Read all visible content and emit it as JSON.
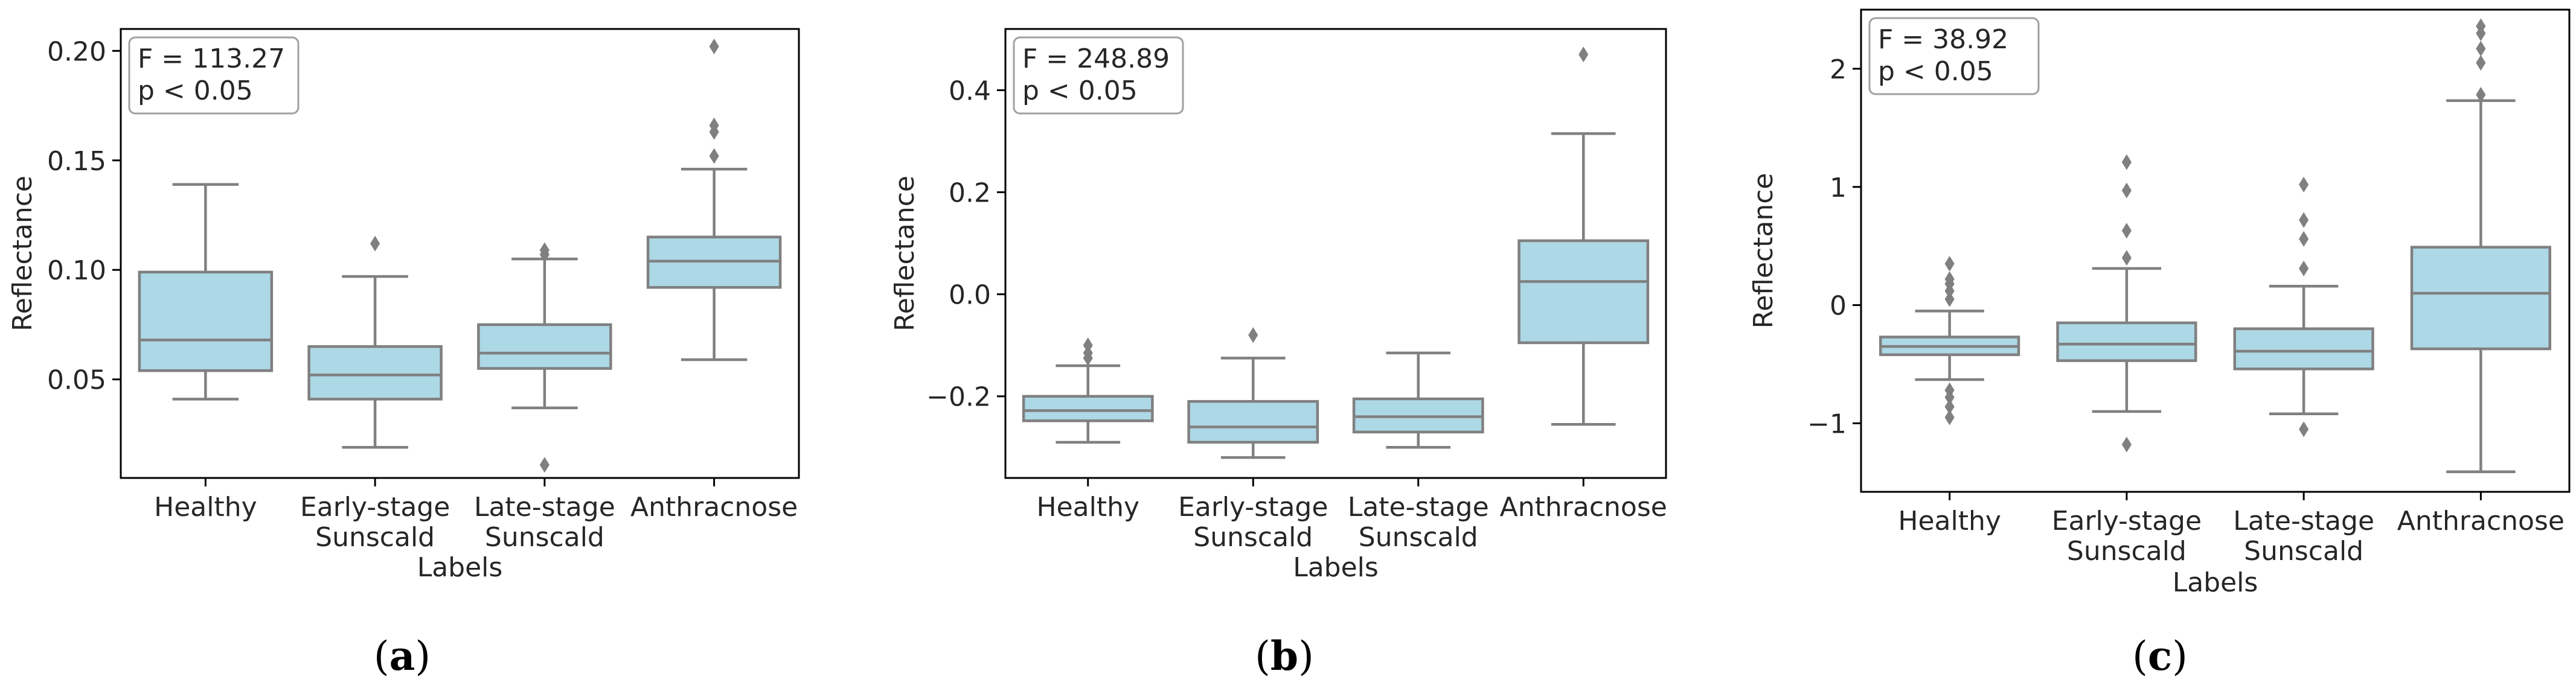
{
  "chart_data": [
    {
      "type": "box",
      "panel_label": "(a)",
      "panel_letter": "a",
      "xlabel": "Labels",
      "ylabel": "Reflectance",
      "ylim": [
        0.005,
        0.21
      ],
      "yticks": [
        0.05,
        0.1,
        0.15,
        0.2
      ],
      "ytick_labels": [
        "0.05",
        "0.10",
        "0.15",
        "0.20"
      ],
      "categories": [
        [
          "Healthy"
        ],
        [
          "Early-stage",
          "Sunscald"
        ],
        [
          "Late-stage",
          "Sunscald"
        ],
        [
          "Anthracnose"
        ]
      ],
      "annotation": {
        "line1": "F = 113.27",
        "line2": "p < 0.05"
      },
      "boxes": [
        {
          "min": 0.041,
          "q1": 0.054,
          "median": 0.068,
          "q3": 0.099,
          "max": 0.139,
          "outliers": []
        },
        {
          "min": 0.019,
          "q1": 0.041,
          "median": 0.052,
          "q3": 0.065,
          "max": 0.097,
          "outliers": [
            0.112
          ]
        },
        {
          "min": 0.037,
          "q1": 0.055,
          "median": 0.062,
          "q3": 0.075,
          "max": 0.105,
          "outliers": [
            0.109,
            0.107,
            0.011
          ]
        },
        {
          "min": 0.059,
          "q1": 0.092,
          "median": 0.104,
          "q3": 0.115,
          "max": 0.146,
          "outliers": [
            0.152,
            0.163,
            0.166,
            0.202
          ]
        }
      ]
    },
    {
      "type": "box",
      "panel_label": "(b)",
      "panel_letter": "b",
      "xlabel": "Labels",
      "ylabel": "Reflectance",
      "ylim": [
        -0.36,
        0.52
      ],
      "yticks": [
        -0.2,
        0.0,
        0.2,
        0.4
      ],
      "ytick_labels": [
        "−0.2",
        "0.0",
        "0.2",
        "0.4"
      ],
      "categories": [
        [
          "Healthy"
        ],
        [
          "Early-stage",
          "Sunscald"
        ],
        [
          "Late-stage",
          "Sunscald"
        ],
        [
          "Anthracnose"
        ]
      ],
      "annotation": {
        "line1": "F = 248.89",
        "line2": "p < 0.05"
      },
      "boxes": [
        {
          "min": -0.29,
          "q1": -0.248,
          "median": -0.228,
          "q3": -0.2,
          "max": -0.14,
          "outliers": [
            -0.125,
            -0.115,
            -0.1
          ]
        },
        {
          "min": -0.32,
          "q1": -0.29,
          "median": -0.26,
          "q3": -0.21,
          "max": -0.125,
          "outliers": [
            -0.08
          ]
        },
        {
          "min": -0.3,
          "q1": -0.27,
          "median": -0.24,
          "q3": -0.205,
          "max": -0.115,
          "outliers": []
        },
        {
          "min": -0.255,
          "q1": -0.095,
          "median": 0.025,
          "q3": 0.105,
          "max": 0.315,
          "outliers": [
            0.47
          ]
        }
      ]
    },
    {
      "type": "box",
      "panel_label": "(c)",
      "panel_letter": "c",
      "xlabel": "Labels",
      "ylabel": "Reflectance",
      "ylim": [
        -1.58,
        2.5
      ],
      "yticks": [
        -1,
        0,
        1,
        2
      ],
      "ytick_labels": [
        "−1",
        "0",
        "1",
        "2"
      ],
      "categories": [
        [
          "Healthy"
        ],
        [
          "Early-stage",
          "Sunscald"
        ],
        [
          "Late-stage",
          "Sunscald"
        ],
        [
          "Anthracnose"
        ]
      ],
      "annotation": {
        "line1": "F = 38.92",
        "line2": "p < 0.05"
      },
      "boxes": [
        {
          "min": -0.63,
          "q1": -0.42,
          "median": -0.35,
          "q3": -0.27,
          "max": -0.05,
          "outliers": [
            0.05,
            0.12,
            0.18,
            0.22,
            0.35,
            -0.72,
            -0.78,
            -0.86,
            -0.95
          ]
        },
        {
          "min": -0.9,
          "q1": -0.47,
          "median": -0.33,
          "q3": -0.15,
          "max": 0.31,
          "outliers": [
            0.4,
            0.63,
            0.97,
            1.21,
            -1.18
          ]
        },
        {
          "min": -0.92,
          "q1": -0.54,
          "median": -0.39,
          "q3": -0.2,
          "max": 0.16,
          "outliers": [
            0.31,
            0.56,
            0.72,
            1.02,
            -1.05
          ]
        },
        {
          "min": -1.41,
          "q1": -0.37,
          "median": 0.1,
          "q3": 0.49,
          "max": 1.73,
          "outliers": [
            1.78,
            2.05,
            2.17,
            2.3,
            2.36
          ]
        }
      ]
    }
  ],
  "colors": {
    "box_fill": "#add8e6",
    "line": "#808080",
    "text": "#262626",
    "axis": "#000000"
  }
}
